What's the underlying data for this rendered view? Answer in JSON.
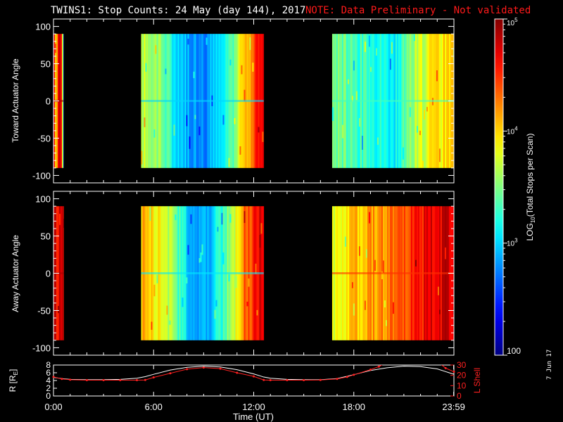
{
  "header": {
    "title": "TWINS1: Stop Counts: 24 May (day 144), 2017",
    "note": "NOTE: Data Preliminary - Not validated"
  },
  "footer": {
    "stamp": "7 Jun 17"
  },
  "colors": {
    "background": "#000000",
    "foreground": "#ffffff",
    "note": "#ff1a1a",
    "r_trace": "#ffffff",
    "l_shell_trace": "#ff2020"
  },
  "chart_data": [
    {
      "type": "heatmap",
      "panel": "toward",
      "ylabel": "Toward Actuator Angle",
      "xlabel": "",
      "ylim": [
        -110,
        110
      ],
      "yticks": [
        "100",
        "50",
        "0",
        "-50",
        "-100"
      ],
      "xlim_hours": [
        0,
        24
      ],
      "data_y_range": [
        -90,
        90
      ],
      "scale": "log",
      "data_intervals_hours": [
        [
          0.0,
          0.6
        ],
        [
          5.25,
          12.6
        ],
        [
          16.7,
          24.0
        ]
      ],
      "level_profile_log10": [
        [
          0.0,
          4.65
        ],
        [
          0.15,
          3.8
        ],
        [
          0.25,
          4.7
        ],
        [
          0.45,
          4.75
        ],
        [
          0.55,
          3.0
        ],
        [
          0.6,
          2.6
        ],
        [
          5.25,
          3.7
        ],
        [
          6.2,
          3.6
        ],
        [
          7.0,
          3.2
        ],
        [
          8.0,
          2.9
        ],
        [
          9.0,
          2.8
        ],
        [
          10.0,
          3.0
        ],
        [
          10.8,
          3.5
        ],
        [
          11.4,
          4.1
        ],
        [
          11.9,
          4.3
        ],
        [
          12.3,
          4.6
        ],
        [
          12.6,
          4.8
        ],
        [
          16.7,
          3.5
        ],
        [
          17.5,
          3.4
        ],
        [
          18.5,
          3.3
        ],
        [
          19.5,
          3.2
        ],
        [
          20.3,
          3.1
        ],
        [
          21.0,
          3.4
        ],
        [
          21.8,
          3.7
        ],
        [
          22.8,
          3.9
        ],
        [
          24.0,
          4.0
        ]
      ]
    },
    {
      "type": "heatmap",
      "panel": "away",
      "ylabel": "Away Actuator Angle",
      "xlabel": "",
      "ylim": [
        -110,
        110
      ],
      "yticks": [
        "100",
        "50",
        "0",
        "-50",
        "-100"
      ],
      "xlim_hours": [
        0,
        24
      ],
      "data_y_range": [
        -90,
        90
      ],
      "scale": "log",
      "data_intervals_hours": [
        [
          0.0,
          0.6
        ],
        [
          5.25,
          12.6
        ],
        [
          16.7,
          24.0
        ]
      ],
      "level_profile_log10": [
        [
          0.0,
          4.75
        ],
        [
          0.2,
          4.6
        ],
        [
          0.45,
          4.8
        ],
        [
          0.6,
          4.7
        ],
        [
          5.25,
          4.1
        ],
        [
          6.2,
          3.9
        ],
        [
          7.0,
          3.6
        ],
        [
          8.0,
          3.0
        ],
        [
          9.0,
          2.85
        ],
        [
          10.0,
          3.2
        ],
        [
          10.8,
          3.7
        ],
        [
          11.4,
          4.3
        ],
        [
          11.9,
          4.5
        ],
        [
          12.3,
          4.7
        ],
        [
          12.6,
          4.8
        ],
        [
          16.7,
          3.8
        ],
        [
          17.5,
          3.9
        ],
        [
          18.5,
          4.1
        ],
        [
          19.5,
          4.2
        ],
        [
          20.5,
          4.3
        ],
        [
          21.5,
          4.5
        ],
        [
          22.5,
          4.65
        ],
        [
          23.5,
          4.75
        ],
        [
          24.0,
          4.7
        ]
      ]
    },
    {
      "type": "line",
      "panel": "orbit",
      "xlabel": "Time (UT)",
      "ylabel": "R [R",
      "ylabel_subscript": "E",
      "ylabel_close": "]",
      "ylim": [
        0,
        8
      ],
      "yticks": [
        "8",
        "6",
        "4",
        "2",
        "0"
      ],
      "y2label": "L Shell",
      "y2lim": [
        0,
        30
      ],
      "y2ticks": [
        "30",
        "20",
        "10",
        "0"
      ],
      "xticks": [
        "0:00",
        "6:00",
        "12:00",
        "18:00",
        "23:59"
      ],
      "xtick_hours": [
        0,
        6,
        12,
        18,
        23.983
      ],
      "series": [
        {
          "axis": "left",
          "x": [
            0,
            0.5,
            1,
            2,
            3,
            4,
            5,
            5.5,
            6,
            7,
            8,
            9,
            10,
            11,
            12,
            12.6,
            13,
            14,
            15,
            16,
            17,
            18,
            19,
            20,
            21,
            22,
            23,
            24
          ],
          "y": [
            4.8,
            4.5,
            4.3,
            4.2,
            4.2,
            4.3,
            4.6,
            5.0,
            5.6,
            6.7,
            7.4,
            7.7,
            7.5,
            6.8,
            5.7,
            4.9,
            4.6,
            4.3,
            4.2,
            4.2,
            4.5,
            5.5,
            6.6,
            7.3,
            7.7,
            7.6,
            7.0,
            5.6
          ]
        },
        {
          "axis": "right",
          "x": [
            0,
            0.5,
            1,
            2,
            3,
            4,
            5,
            5.5,
            6,
            7,
            8,
            9,
            10,
            11,
            12,
            12.6,
            13,
            14,
            15,
            16,
            17,
            17.6,
            18,
            19,
            19.5,
            19.8,
            23.2,
            23.5,
            24
          ],
          "y": [
            18.5,
            16.5,
            15.8,
            15.3,
            15.3,
            15.3,
            15.3,
            15.5,
            18,
            22,
            26,
            27.5,
            26.5,
            22.5,
            19,
            15.5,
            15.3,
            15.3,
            15.3,
            15.5,
            16.5,
            18.5,
            20.5,
            25.5,
            28.5,
            31,
            31,
            27,
            23.5
          ]
        }
      ]
    },
    {
      "type": "heatmap",
      "panel": "colorbar",
      "ylabel": "LOG",
      "ylabel_subscript": "10",
      "ylabel_rest": "(Total Stops per Scan)",
      "range_log10": [
        2,
        5
      ],
      "tick_labels": [
        {
          "base": "10",
          "exp": "5"
        },
        {
          "base": "10",
          "exp": "4"
        },
        {
          "base": "10",
          "exp": "3"
        },
        {
          "base": "100",
          "exp": ""
        }
      ]
    }
  ]
}
